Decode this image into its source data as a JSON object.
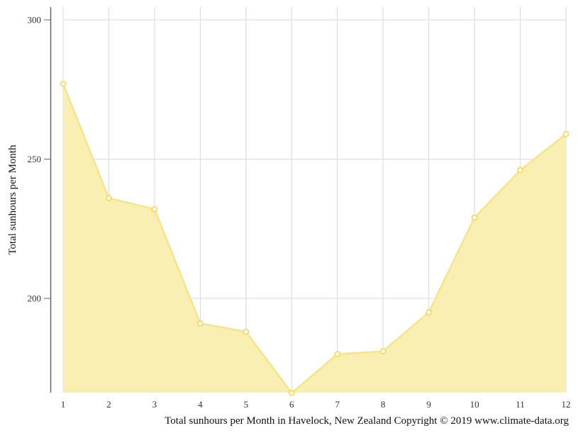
{
  "chart_data": {
    "type": "area",
    "title": "",
    "xlabel": "Total sunhours per Month in Havelock, New Zealand Copyright © 2019 www.climate-data.org",
    "ylabel": "Total sunhours per Month",
    "categories": [
      "1",
      "2",
      "3",
      "4",
      "5",
      "6",
      "7",
      "8",
      "9",
      "10",
      "11",
      "12"
    ],
    "series": [
      {
        "name": "Total sunhours per Month",
        "values": [
          277,
          236,
          232,
          191,
          188,
          166,
          180,
          181,
          195,
          229,
          246,
          259
        ]
      }
    ],
    "y_ticks": [
      200,
      250,
      300
    ],
    "ylim": [
      166,
      304
    ],
    "grid": true,
    "legend": "none",
    "colors": {
      "fill": "#f9eeae",
      "line": "#f7e38b",
      "marker_stroke": "#f5d547",
      "marker_fill": "#ffffff",
      "grid": "#d9d9d9",
      "axis": "#666666"
    }
  },
  "labels": {
    "y_title": "Total sunhours per Month",
    "x_title": "Total sunhours per Month in Havelock, New Zealand Copyright © 2019 www.climate-data.org",
    "y_tick_200": "200",
    "y_tick_250": "250",
    "y_tick_300": "300"
  }
}
